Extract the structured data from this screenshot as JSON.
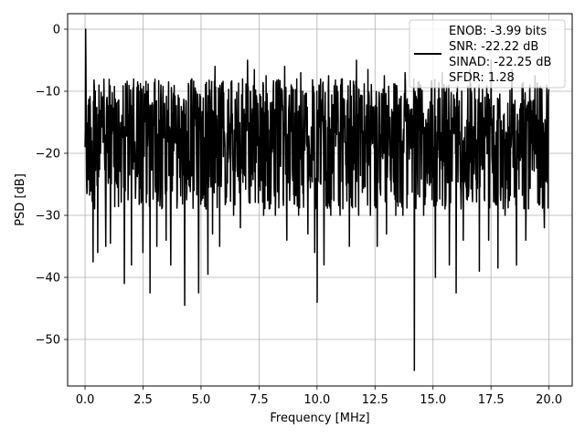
{
  "chart_data": {
    "type": "line",
    "title": "",
    "xlabel": "Frequency [MHz]",
    "ylabel": "PSD [dB]",
    "xlim": [
      -0.75,
      21
    ],
    "ylim": [
      -57.5,
      2.5
    ],
    "xticks": [
      0.0,
      2.5,
      5.0,
      7.5,
      10.0,
      12.5,
      15.0,
      17.5,
      20.0
    ],
    "xtick_labels": [
      "0.0",
      "2.5",
      "5.0",
      "7.5",
      "10.0",
      "12.5",
      "15.0",
      "17.5",
      "20.0"
    ],
    "yticks": [
      0,
      -10,
      -20,
      -30,
      -40,
      -50
    ],
    "ytick_labels": [
      "0",
      "−10",
      "−20",
      "−30",
      "−40",
      "−50"
    ],
    "grid": true,
    "legend_position": "top-right",
    "series_color": "#000000",
    "legend": [
      "ENOB: -3.99 bits",
      "SNR: -22.22 dB",
      "SINAD: -22.25 dB",
      "SFDR: 1.28"
    ],
    "series": [
      {
        "x_range": [
          0,
          20
        ],
        "points": 1500,
        "typical_range": [
          -29,
          -8
        ],
        "peak": [
          0.03,
          0
        ],
        "dips": [
          [
            0.35,
            -37.5
          ],
          [
            0.55,
            -36
          ],
          [
            0.9,
            -35
          ],
          [
            1.1,
            -34.5
          ],
          [
            1.7,
            -41
          ],
          [
            2.0,
            -38
          ],
          [
            2.5,
            -36
          ],
          [
            2.8,
            -42.5
          ],
          [
            3.1,
            -35
          ],
          [
            3.5,
            -34
          ],
          [
            3.7,
            -38
          ],
          [
            4.3,
            -44.5
          ],
          [
            4.6,
            -38
          ],
          [
            4.9,
            -42.5
          ],
          [
            5.3,
            -39.5
          ],
          [
            5.5,
            -33
          ],
          [
            5.8,
            -35
          ],
          [
            6.4,
            -30
          ],
          [
            6.7,
            -32
          ],
          [
            7.3,
            -39.5
          ],
          [
            7.7,
            -30
          ],
          [
            8.2,
            -30
          ],
          [
            8.7,
            -34
          ],
          [
            9.2,
            -30
          ],
          [
            9.6,
            -33
          ],
          [
            9.9,
            -36
          ],
          [
            10.0,
            -44
          ],
          [
            10.3,
            -38
          ],
          [
            10.6,
            -30
          ],
          [
            11.0,
            -30
          ],
          [
            11.4,
            -35
          ],
          [
            11.8,
            -30
          ],
          [
            12.3,
            -30
          ],
          [
            12.6,
            -35
          ],
          [
            13.0,
            -33
          ],
          [
            13.4,
            -30
          ],
          [
            13.7,
            -30
          ],
          [
            14.2,
            -55
          ],
          [
            14.6,
            -30
          ],
          [
            15.1,
            -40
          ],
          [
            15.4,
            -43
          ],
          [
            15.7,
            -38
          ],
          [
            16.0,
            -42.5
          ],
          [
            16.3,
            -34
          ],
          [
            16.6,
            -35
          ],
          [
            17.0,
            -39
          ],
          [
            17.4,
            -34
          ],
          [
            17.8,
            -38.5
          ],
          [
            18.1,
            -30
          ],
          [
            18.6,
            -38
          ],
          [
            19.0,
            -34
          ],
          [
            19.4,
            -35
          ],
          [
            19.8,
            -32
          ]
        ],
        "highs": [
          [
            0.04,
            -6.5
          ],
          [
            0.6,
            -9
          ],
          [
            2.3,
            -9
          ],
          [
            3.6,
            -8.5
          ],
          [
            4.6,
            -8
          ],
          [
            5.6,
            -6
          ],
          [
            6.3,
            -8.5
          ],
          [
            7.0,
            -5
          ],
          [
            7.3,
            -6.5
          ],
          [
            7.8,
            -7.5
          ],
          [
            8.6,
            -6
          ],
          [
            9.3,
            -7
          ],
          [
            10.5,
            -7.5
          ],
          [
            11.7,
            -5
          ],
          [
            12.2,
            -6.5
          ],
          [
            12.9,
            -7.5
          ],
          [
            13.8,
            -7
          ],
          [
            14.4,
            -8.5
          ],
          [
            15.4,
            -7
          ],
          [
            16.6,
            -6.5
          ],
          [
            17.5,
            -5
          ],
          [
            18.4,
            -6.5
          ],
          [
            19.4,
            -7.5
          ],
          [
            19.9,
            -9
          ]
        ]
      }
    ]
  }
}
